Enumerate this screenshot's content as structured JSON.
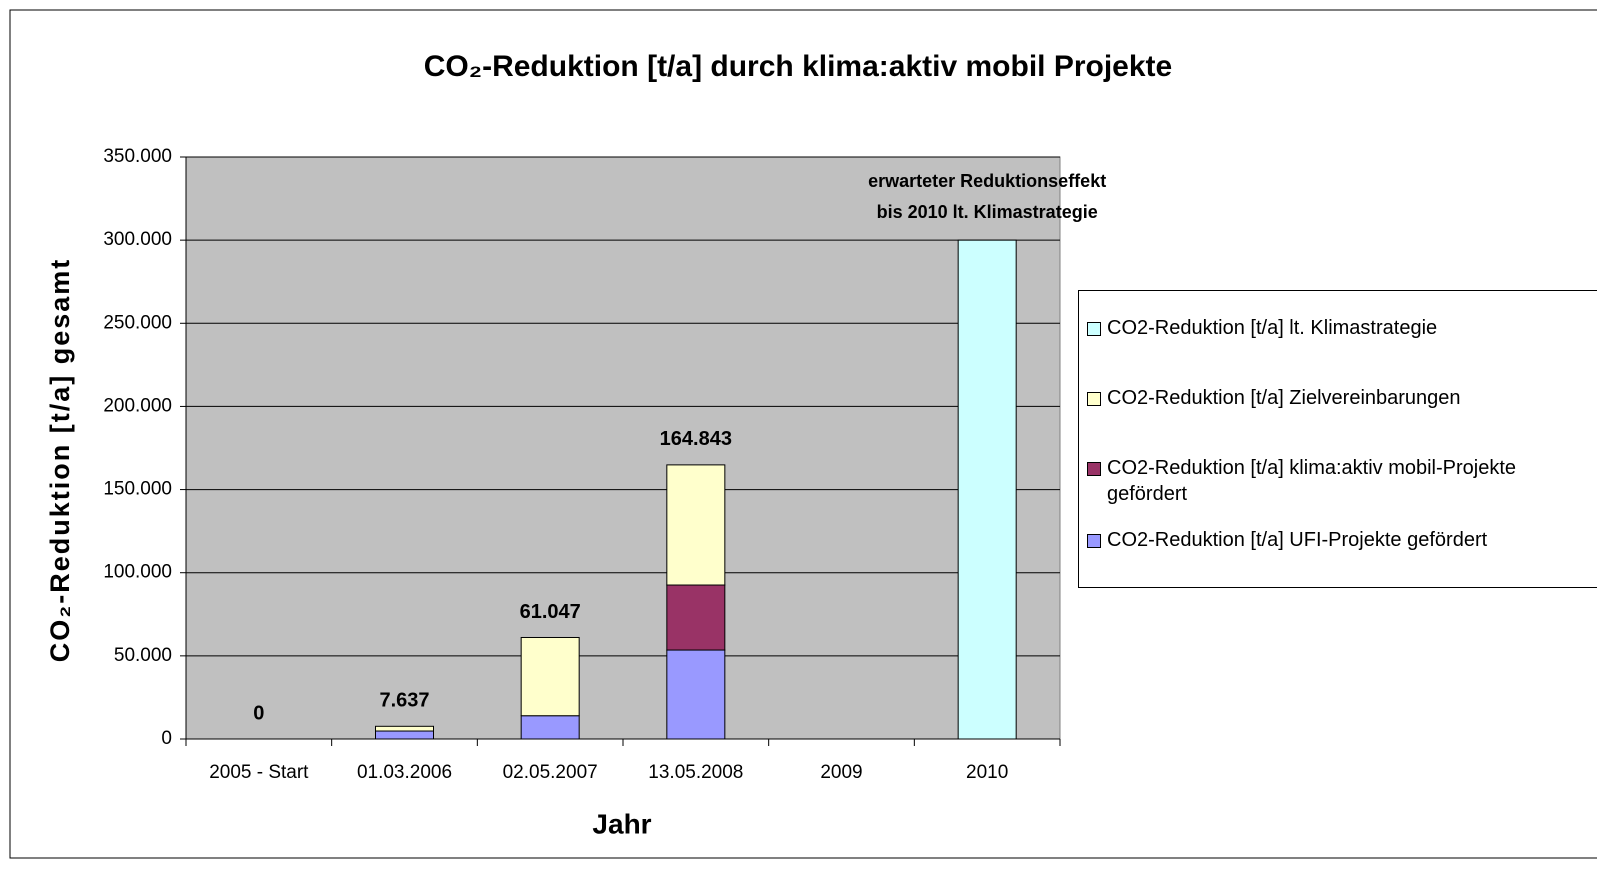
{
  "chart_data": {
    "type": "bar",
    "stacked": true,
    "title": "CO₂-Reduktion [t/a] durch klima:aktiv mobil Projekte",
    "x_label": "Jahr",
    "y_label": "CO₂-Reduktion [t/a] gesamt",
    "categories": [
      "2005 - Start",
      "01.03.2006",
      "02.05.2007",
      "13.05.2008",
      "2009",
      "2010"
    ],
    "series": [
      {
        "name": "CO2-Reduktion [t/a] UFI-Projekte gefördert",
        "color": "#9999ff",
        "values": [
          0,
          4800,
          14000,
          53500,
          null,
          null
        ]
      },
      {
        "name": "CO2-Reduktion [t/a] klima:aktiv mobil-Projekte gefördert",
        "color": "#993366",
        "values": [
          null,
          null,
          null,
          39100,
          null,
          null
        ]
      },
      {
        "name": "CO2-Reduktion [t/a] Zielvereinbarungen",
        "color": "#ffffcc",
        "values": [
          null,
          2837,
          47047,
          72243,
          null,
          null
        ]
      },
      {
        "name": "CO2-Reduktion [t/a] lt. Klimastrategie",
        "color": "#ccffff",
        "values": [
          null,
          null,
          null,
          null,
          null,
          300000
        ]
      }
    ],
    "totals": {
      "values": [
        0,
        7637,
        61047,
        164843
      ],
      "labels": [
        "0",
        "7.637",
        "61.047",
        "164.843"
      ]
    },
    "annotation": [
      "erwarteter Reduktionseffekt",
      "bis 2010 lt. Klimastrategie"
    ],
    "ylim": [
      0,
      350000
    ],
    "yticks": [
      0,
      {
        "value": 50000,
        "label": "50.000"
      },
      {
        "value": 100000,
        "label": "100.000"
      },
      {
        "value": 150000,
        "label": "150.000"
      },
      {
        "value": 200000,
        "label": "200.000"
      },
      {
        "value": 250000,
        "label": "250.000"
      },
      {
        "value": 300000,
        "label": "300.000"
      },
      {
        "value": 350000,
        "label": "350.000"
      }
    ],
    "grid": true,
    "plot_background": "#c0c0c0",
    "legend": "right"
  }
}
